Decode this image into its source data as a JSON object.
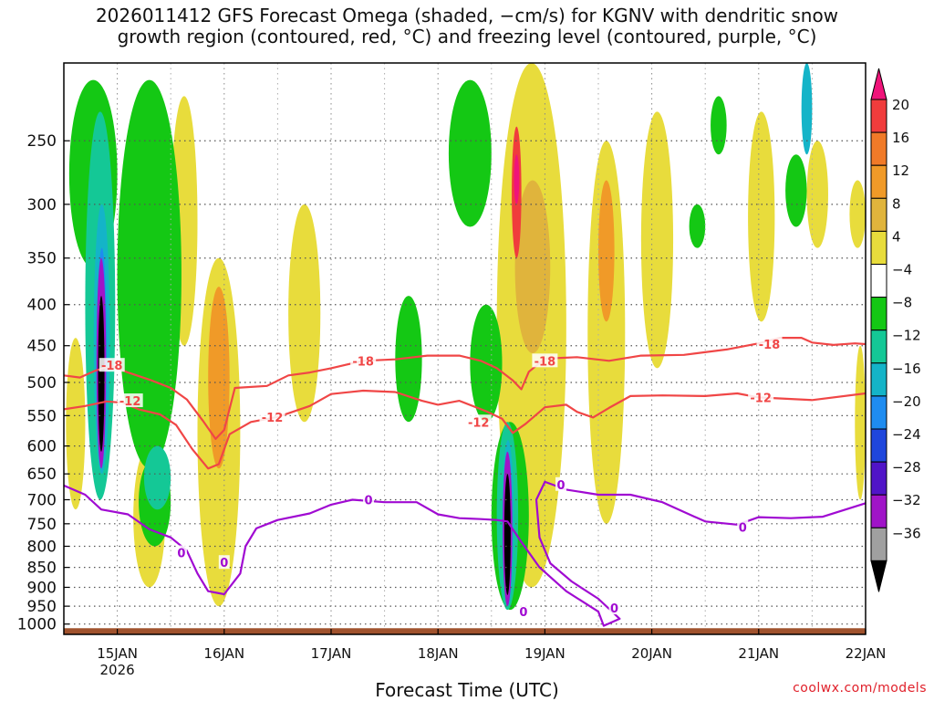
{
  "title": {
    "line1": "2026011412 GFS Forecast Omega (shaded, −cm/s) for KGNV with dendritic snow",
    "line2": "growth region (contoured, red, °C) and freezing level (contoured, purple, °C)"
  },
  "credit": "coolwx.com/models",
  "chart_data": {
    "type": "heatmap",
    "title": "2026011412 GFS Forecast Omega (shaded, −cm/s) for KGNV with dendritic snow growth region (contoured, red, °C) and freezing level (contoured, purple, °C)",
    "xlabel": "Forecast Time (UTC)",
    "ylabel": "",
    "x_range_days": [
      14.5,
      22.0
    ],
    "y_levels_hpa": [
      250,
      300,
      350,
      400,
      450,
      500,
      550,
      600,
      650,
      700,
      750,
      800,
      850,
      900,
      950,
      1000
    ],
    "y_tick_labels": [
      "250",
      "300",
      "350",
      "400",
      "450",
      "500",
      "550",
      "600",
      "650",
      "700",
      "750",
      "800",
      "850",
      "900",
      "950",
      "1000"
    ],
    "y_range_hpa": [
      200,
      1030
    ],
    "x_ticks": [
      {
        "day": 15,
        "label": "15JAN",
        "sublabel": "2026"
      },
      {
        "day": 16,
        "label": "16JAN",
        "sublabel": ""
      },
      {
        "day": 17,
        "label": "17JAN",
        "sublabel": ""
      },
      {
        "day": 18,
        "label": "18JAN",
        "sublabel": ""
      },
      {
        "day": 19,
        "label": "19JAN",
        "sublabel": ""
      },
      {
        "day": 20,
        "label": "20JAN",
        "sublabel": ""
      },
      {
        "day": 21,
        "label": "21JAN",
        "sublabel": ""
      },
      {
        "day": 22,
        "label": "22JAN",
        "sublabel": ""
      }
    ],
    "colorbar": {
      "labels": [
        "20",
        "16",
        "12",
        "8",
        "4",
        "−4",
        "−8",
        "−12",
        "−16",
        "−20",
        "−24",
        "−28",
        "−32",
        "−36"
      ],
      "colors": [
        "#f0147a",
        "#f03c3c",
        "#f07a28",
        "#f09a28",
        "#e0b43c",
        "#e8dc3c",
        "#ffffff",
        "#14c814",
        "#14c896",
        "#14b4c8",
        "#1e8cf0",
        "#1e46dc",
        "#5014c8",
        "#a014c8",
        "#a0a0a0",
        "#000000"
      ]
    },
    "contours": [
      {
        "name": "snow-growth -18C",
        "label": "-18",
        "color": "#f04646",
        "points": [
          [
            14.5,
            490
          ],
          [
            14.65,
            493
          ],
          [
            14.8,
            483
          ],
          [
            14.95,
            477
          ],
          [
            15.1,
            486
          ],
          [
            15.3,
            496
          ],
          [
            15.5,
            508
          ],
          [
            15.65,
            525
          ],
          [
            15.8,
            558
          ],
          [
            15.92,
            588
          ],
          [
            16.0,
            573
          ],
          [
            16.1,
            508
          ],
          [
            16.4,
            505
          ],
          [
            16.6,
            490
          ],
          [
            16.8,
            486
          ],
          [
            17.0,
            480
          ],
          [
            17.3,
            470
          ],
          [
            17.6,
            468
          ],
          [
            17.9,
            463
          ],
          [
            18.2,
            463
          ],
          [
            18.4,
            470
          ],
          [
            18.55,
            480
          ],
          [
            18.7,
            497
          ],
          [
            18.78,
            510
          ],
          [
            18.85,
            485
          ],
          [
            19.0,
            467
          ],
          [
            19.3,
            465
          ],
          [
            19.6,
            470
          ],
          [
            19.9,
            463
          ],
          [
            20.3,
            462
          ],
          [
            20.7,
            455
          ],
          [
            21.0,
            447
          ],
          [
            21.2,
            440
          ],
          [
            21.4,
            440
          ],
          [
            21.5,
            446
          ],
          [
            21.7,
            449
          ],
          [
            21.9,
            447
          ],
          [
            22.0,
            448
          ]
        ]
      },
      {
        "name": "snow-growth -12C",
        "label": "-12",
        "color": "#f04646",
        "points": [
          [
            14.5,
            540
          ],
          [
            14.7,
            535
          ],
          [
            14.9,
            528
          ],
          [
            15.05,
            530
          ],
          [
            15.2,
            540
          ],
          [
            15.4,
            548
          ],
          [
            15.55,
            565
          ],
          [
            15.7,
            605
          ],
          [
            15.85,
            640
          ],
          [
            15.95,
            632
          ],
          [
            16.05,
            580
          ],
          [
            16.25,
            560
          ],
          [
            16.5,
            552
          ],
          [
            16.8,
            535
          ],
          [
            17.0,
            517
          ],
          [
            17.3,
            512
          ],
          [
            17.6,
            514
          ],
          [
            17.85,
            527
          ],
          [
            18.0,
            533
          ],
          [
            18.2,
            527
          ],
          [
            18.45,
            543
          ],
          [
            18.6,
            555
          ],
          [
            18.7,
            578
          ],
          [
            18.82,
            563
          ],
          [
            19.0,
            537
          ],
          [
            19.2,
            533
          ],
          [
            19.3,
            544
          ],
          [
            19.45,
            553
          ],
          [
            19.6,
            538
          ],
          [
            19.8,
            520
          ],
          [
            20.1,
            519
          ],
          [
            20.5,
            520
          ],
          [
            20.8,
            516
          ],
          [
            21.0,
            522
          ],
          [
            21.5,
            526
          ],
          [
            22.0,
            516
          ]
        ]
      },
      {
        "name": "freezing-level 0C",
        "label": "0",
        "color": "#a00ad2",
        "points": [
          [
            14.5,
            672
          ],
          [
            14.7,
            690
          ],
          [
            14.85,
            720
          ],
          [
            15.1,
            730
          ],
          [
            15.3,
            762
          ],
          [
            15.5,
            780
          ],
          [
            15.65,
            810
          ],
          [
            15.75,
            865
          ],
          [
            15.85,
            910
          ],
          [
            16.0,
            918
          ],
          [
            16.15,
            865
          ],
          [
            16.2,
            800
          ],
          [
            16.3,
            760
          ],
          [
            16.5,
            742
          ],
          [
            16.8,
            728
          ],
          [
            17.0,
            710
          ],
          [
            17.2,
            700
          ],
          [
            17.5,
            705
          ],
          [
            17.8,
            705
          ],
          [
            18.0,
            730
          ],
          [
            18.2,
            738
          ],
          [
            18.4,
            740
          ],
          [
            18.55,
            742
          ],
          [
            18.65,
            745
          ],
          [
            18.78,
            790
          ],
          [
            18.95,
            850
          ],
          [
            19.2,
            910
          ],
          [
            19.5,
            965
          ],
          [
            19.55,
            1005
          ],
          [
            19.7,
            985
          ],
          [
            19.5,
            930
          ],
          [
            19.25,
            885
          ],
          [
            19.05,
            840
          ],
          [
            18.95,
            780
          ],
          [
            18.92,
            700
          ],
          [
            19.0,
            665
          ],
          [
            19.2,
            680
          ],
          [
            19.5,
            690
          ],
          [
            19.8,
            690
          ],
          [
            20.1,
            705
          ],
          [
            20.3,
            725
          ],
          [
            20.5,
            745
          ],
          [
            20.8,
            752
          ],
          [
            21.0,
            736
          ],
          [
            21.3,
            738
          ],
          [
            21.6,
            735
          ],
          [
            22.0,
            707
          ]
        ]
      }
    ],
    "contour_labels": [
      {
        "text": "-18",
        "day": 14.95,
        "hpa": 476,
        "color": "#f04646"
      },
      {
        "text": "-12",
        "day": 15.12,
        "hpa": 527,
        "color": "#f04646"
      },
      {
        "text": "-12",
        "day": 16.45,
        "hpa": 552,
        "color": "#f04646"
      },
      {
        "text": "-18",
        "day": 17.3,
        "hpa": 470,
        "color": "#f04646"
      },
      {
        "text": "-12",
        "day": 18.38,
        "hpa": 560,
        "color": "#f04646"
      },
      {
        "text": "-18",
        "day": 19.0,
        "hpa": 470,
        "color": "#f04646"
      },
      {
        "text": "-18",
        "day": 21.1,
        "hpa": 448,
        "color": "#f04646"
      },
      {
        "text": "-12",
        "day": 21.02,
        "hpa": 522,
        "color": "#f04646"
      },
      {
        "text": "0",
        "day": 15.6,
        "hpa": 815,
        "color": "#a00ad2"
      },
      {
        "text": "0",
        "day": 16.0,
        "hpa": 838,
        "color": "#a00ad2"
      },
      {
        "text": "0",
        "day": 17.35,
        "hpa": 700,
        "color": "#a00ad2"
      },
      {
        "text": "0",
        "day": 18.8,
        "hpa": 965,
        "color": "#a00ad2"
      },
      {
        "text": "0",
        "day": 19.15,
        "hpa": 670,
        "color": "#a00ad2"
      },
      {
        "text": "0",
        "day": 19.65,
        "hpa": 955,
        "color": "#a00ad2"
      },
      {
        "text": "0",
        "day": 20.85,
        "hpa": 757,
        "color": "#a00ad2"
      }
    ],
    "omega_features": [
      {
        "day": 14.85,
        "p_top": 330,
        "p_bottom": 650,
        "peak_cms": -36,
        "note": "strong rising motion (black core)"
      },
      {
        "day": 18.65,
        "p_top": 590,
        "p_bottom": 960,
        "peak_cms": -36,
        "note": "strong rising motion (black core)"
      },
      {
        "day": 18.72,
        "p_top": 250,
        "p_bottom": 340,
        "peak_cms": 20,
        "note": "strong sinking motion (red/magenta)"
      }
    ],
    "ground_color": "#a0522d"
  }
}
